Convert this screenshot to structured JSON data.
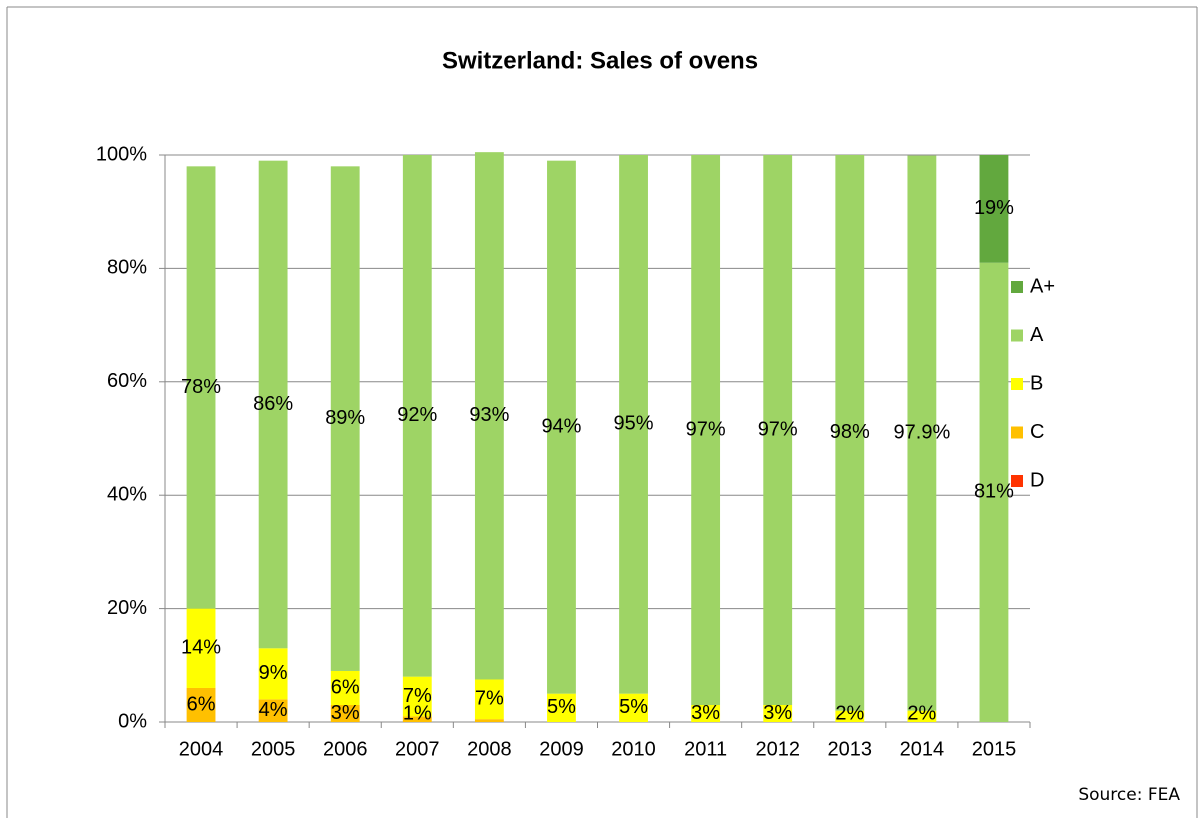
{
  "chart_data": {
    "type": "stacked_bar",
    "title": "Switzerland: Sales of ovens",
    "categories": [
      "2004",
      "2005",
      "2006",
      "2007",
      "2008",
      "2009",
      "2010",
      "2011",
      "2012",
      "2013",
      "2014",
      "2015"
    ],
    "series": [
      {
        "name": "D",
        "color": "#ff3300",
        "values": [
          null,
          null,
          null,
          null,
          null,
          null,
          null,
          null,
          null,
          null,
          null,
          null
        ],
        "value_labels": [
          null,
          null,
          null,
          null,
          null,
          null,
          null,
          null,
          null,
          null,
          null,
          null
        ]
      },
      {
        "name": "C",
        "color": "#ffc000",
        "values": [
          6,
          4,
          3,
          1,
          0.5,
          null,
          null,
          null,
          null,
          null,
          null,
          null
        ],
        "value_labels": [
          "6%",
          "4%",
          "3%",
          "1%",
          null,
          null,
          null,
          null,
          null,
          null,
          null,
          null
        ]
      },
      {
        "name": "B",
        "color": "#ffff00",
        "values": [
          14,
          9,
          6,
          7,
          7,
          5,
          5,
          3,
          3,
          2,
          2,
          null
        ],
        "value_labels": [
          "14%",
          "9%",
          "6%",
          "7%",
          "7%",
          "5%",
          "5%",
          "3%",
          "3%",
          "2%",
          "2%",
          null
        ]
      },
      {
        "name": "A",
        "color": "#9ed465",
        "values": [
          78,
          86,
          89,
          92,
          93,
          94,
          95,
          97,
          97,
          98,
          97.9,
          81
        ],
        "value_labels": [
          "78%",
          "86%",
          "89%",
          "92%",
          "93%",
          "94%",
          "95%",
          "97%",
          "97%",
          "98%",
          "97.9%",
          "81%"
        ]
      },
      {
        "name": "A+",
        "color": "#62a83e",
        "values": [
          null,
          null,
          null,
          null,
          null,
          null,
          null,
          null,
          null,
          null,
          null,
          19
        ],
        "value_labels": [
          null,
          null,
          null,
          null,
          null,
          null,
          null,
          null,
          null,
          null,
          null,
          "19%"
        ]
      }
    ],
    "ylim": [
      0,
      100
    ],
    "yticks": [
      {
        "value": 0,
        "label": "0%"
      },
      {
        "value": 20,
        "label": "20%"
      },
      {
        "value": 40,
        "label": "40%"
      },
      {
        "value": 60,
        "label": "60%"
      },
      {
        "value": 80,
        "label": "80%"
      },
      {
        "value": 100,
        "label": "100%"
      }
    ],
    "grid": true,
    "legend": "right",
    "source": "Source: FEA"
  }
}
